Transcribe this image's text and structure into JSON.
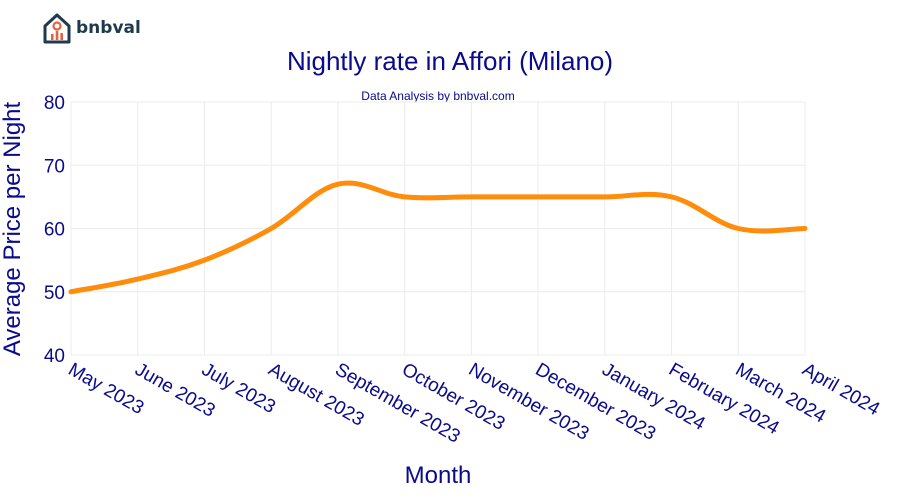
{
  "brand": {
    "name": "bnbval",
    "accent": "#1f3a4d",
    "icon_accent": "#e8603c"
  },
  "chart_data": {
    "type": "line",
    "title": "Nightly rate in Affori (Milano)",
    "subtitle": "Data Analysis by bnbval.com",
    "xlabel": "Month",
    "ylabel": "Average Price per Night",
    "categories": [
      "May 2023",
      "June 2023",
      "July 2023",
      "August 2023",
      "September 2023",
      "October 2023",
      "November 2023",
      "December 2023",
      "January 2024",
      "February 2024",
      "March 2024",
      "April 2024"
    ],
    "series": [
      {
        "name": "Average Price per Night",
        "color": "#ff8c0a",
        "values": [
          50,
          52,
          55,
          60,
          67,
          65,
          65,
          65,
          65,
          65,
          60,
          60
        ]
      }
    ],
    "ylim": [
      40,
      80
    ],
    "yticks": [
      40,
      50,
      60,
      70,
      80
    ],
    "grid": true
  }
}
